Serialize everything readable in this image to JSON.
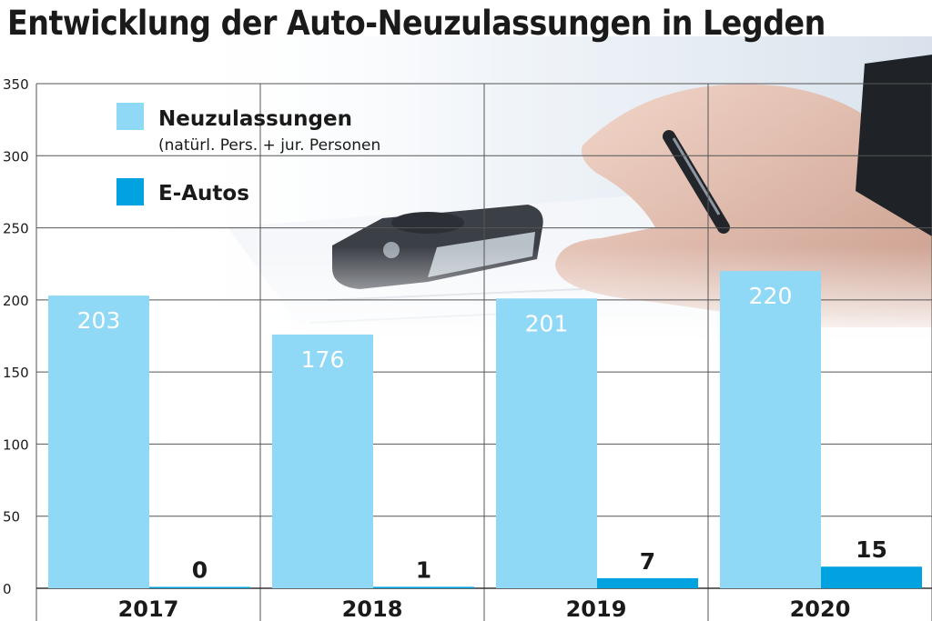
{
  "title": "Entwicklung der Auto-Neuzulassungen in Legden",
  "colors": {
    "neuzulassungen": "#8fd8f6",
    "e_autos": "#00a3e0",
    "grid": "#555555",
    "text": "#1a1a1a",
    "bar_label_light": "#ffffff"
  },
  "background_image": "photo-icon: hand with pen and car key on a contract",
  "legend": {
    "position": "top-left",
    "items": [
      {
        "label": "Neuzulassungen",
        "sublabel": "(natürl. Pers. + jur. Personen",
        "color": "#8fd8f6"
      },
      {
        "label": "E-Autos",
        "sublabel": "",
        "color": "#00a3e0"
      }
    ]
  },
  "chart_data": {
    "type": "bar",
    "title": "Entwicklung der Auto-Neuzulassungen in Legden",
    "categories": [
      "2017",
      "2018",
      "2019",
      "2020"
    ],
    "series": [
      {
        "name": "Neuzulassungen",
        "values": [
          203,
          176,
          201,
          220
        ],
        "color": "#8fd8f6"
      },
      {
        "name": "E-Autos",
        "values": [
          0,
          1,
          7,
          15
        ],
        "color": "#00a3e0"
      }
    ],
    "y_ticks": [
      "0",
      "50",
      "100",
      "150",
      "200",
      "250",
      "300",
      "350"
    ],
    "ylim": [
      0,
      350
    ],
    "grid": true,
    "legend": "top-left"
  }
}
